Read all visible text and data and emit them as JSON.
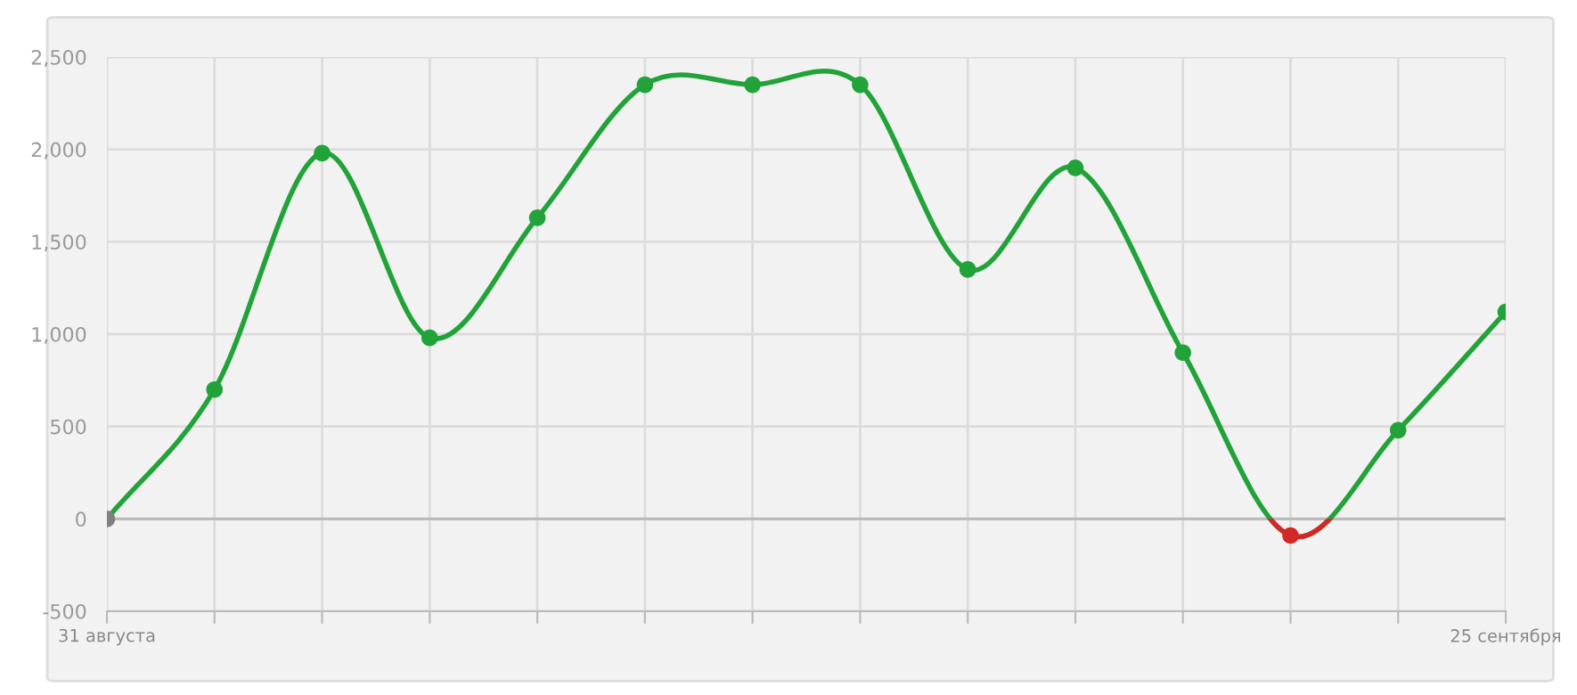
{
  "chart_data": {
    "type": "line",
    "categories": [
      "31 августа",
      null,
      null,
      null,
      null,
      null,
      null,
      null,
      null,
      null,
      null,
      null,
      null,
      "25 сентября"
    ],
    "series": [
      {
        "color": "#22a33a",
        "colors": [
          "#808080",
          "#22a33a",
          "#22a33a",
          "#22a33a",
          "#22a33a",
          "#22a33a",
          "#22a33a",
          "#22a33a",
          "#22a33a",
          "#22a33a",
          "#22a33a",
          "#d62728",
          "#22a33a",
          "#22a33a"
        ],
        "values": [
          0,
          700,
          1980,
          980,
          1630,
          2350,
          2350,
          2350,
          1350,
          1900,
          900,
          -90,
          480,
          1120
        ]
      }
    ],
    "ylim": [
      -500,
      2500
    ],
    "yticks": [
      -500,
      0,
      500,
      {
        "value": 1000,
        "label": "1,000"
      },
      {
        "value": 1500,
        "label": "1,500"
      },
      {
        "value": 2000,
        "label": "2,000"
      },
      {
        "value": 2500,
        "label": "2,500"
      }
    ],
    "ref_lines": [
      {
        "axis": "y",
        "value": 0,
        "color": "#bbbbbb"
      }
    ],
    "grid": true,
    "marker": "circle",
    "line_style": "solid",
    "legend": false
  }
}
